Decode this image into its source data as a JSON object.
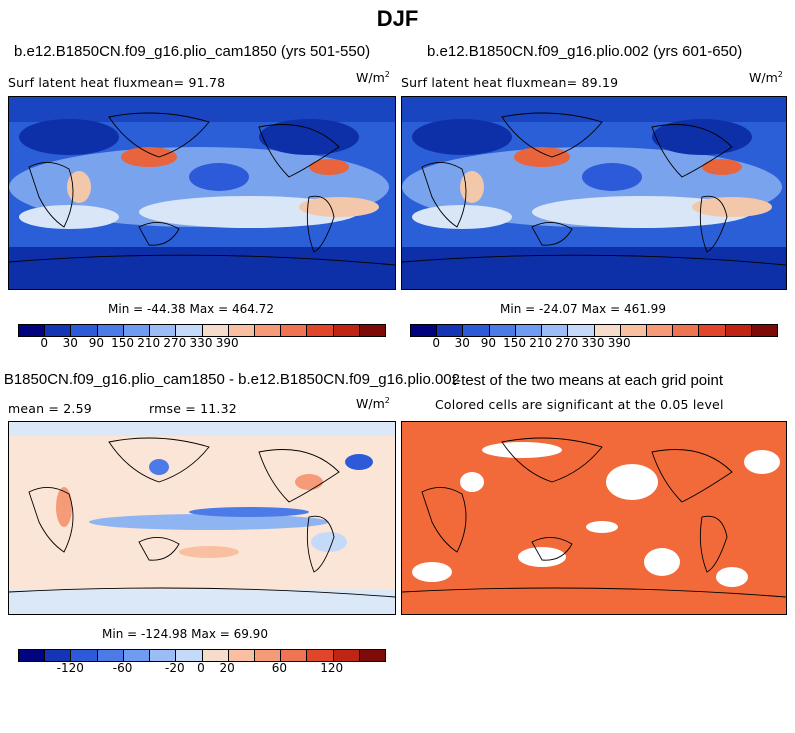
{
  "suptitle": "DJF",
  "panels": [
    {
      "title": "b.e12.B1850CN.f09_g16.plio_cam1850 (yrs 501-550)",
      "subtitle": "Surf latent heat fluxmean=  91.78",
      "units_base": "W/m",
      "units_exp": "2",
      "minmax": "Min = -44.38 Max = 464.72",
      "colorbar_colors": [
        "#02037e",
        "#1536b4",
        "#2c5ad8",
        "#4c7be8",
        "#6f9cf0",
        "#9bbcf5",
        "#c5daf8",
        "#f5dccb",
        "#f8bfa1",
        "#f59b78",
        "#ef7451",
        "#e1462a",
        "#c02414",
        "#7e0b08"
      ],
      "colorbar_labels": [
        "0",
        "30",
        "90",
        "150",
        "210",
        "270",
        "330",
        "390"
      ]
    },
    {
      "title": "b.e12.B1850CN.f09_g16.plio.002 (yrs 601-650)",
      "subtitle": "Surf latent heat fluxmean=  89.19",
      "units_base": "W/m",
      "units_exp": "2",
      "minmax": "Min = -24.07 Max = 461.99",
      "colorbar_colors": [
        "#02037e",
        "#1536b4",
        "#2c5ad8",
        "#4c7be8",
        "#6f9cf0",
        "#9bbcf5",
        "#c5daf8",
        "#f5dccb",
        "#f8bfa1",
        "#f59b78",
        "#ef7451",
        "#e1462a",
        "#c02414",
        "#7e0b08"
      ],
      "colorbar_labels": [
        "0",
        "30",
        "90",
        "150",
        "210",
        "270",
        "330",
        "390"
      ]
    },
    {
      "title": "B1850CN.f09_g16.plio_cam1850 - b.e12.B1850CN.f09_g16.plio.002",
      "subtitle_mean": "mean =   2.59",
      "subtitle_rmse": "rmse =  11.32",
      "units_base": "W/m",
      "units_exp": "2",
      "minmax": "Min = -124.98 Max =  69.90",
      "colorbar_colors": [
        "#02037e",
        "#1536b4",
        "#2c5ad8",
        "#4c7be8",
        "#6f9cf0",
        "#9bbcf5",
        "#c5daf8",
        "#f5dccb",
        "#f8bfa1",
        "#f59b78",
        "#ef7451",
        "#e1462a",
        "#c02414",
        "#7e0b08"
      ],
      "colorbar_labels": [
        "-120",
        "-60",
        "-20",
        "0",
        "20",
        "60",
        "120"
      ]
    },
    {
      "title": "t-test of the two means at each grid point",
      "subtitle": "Colored cells are significant at the 0.05 level",
      "significant_color": "#f26a3a"
    }
  ]
}
